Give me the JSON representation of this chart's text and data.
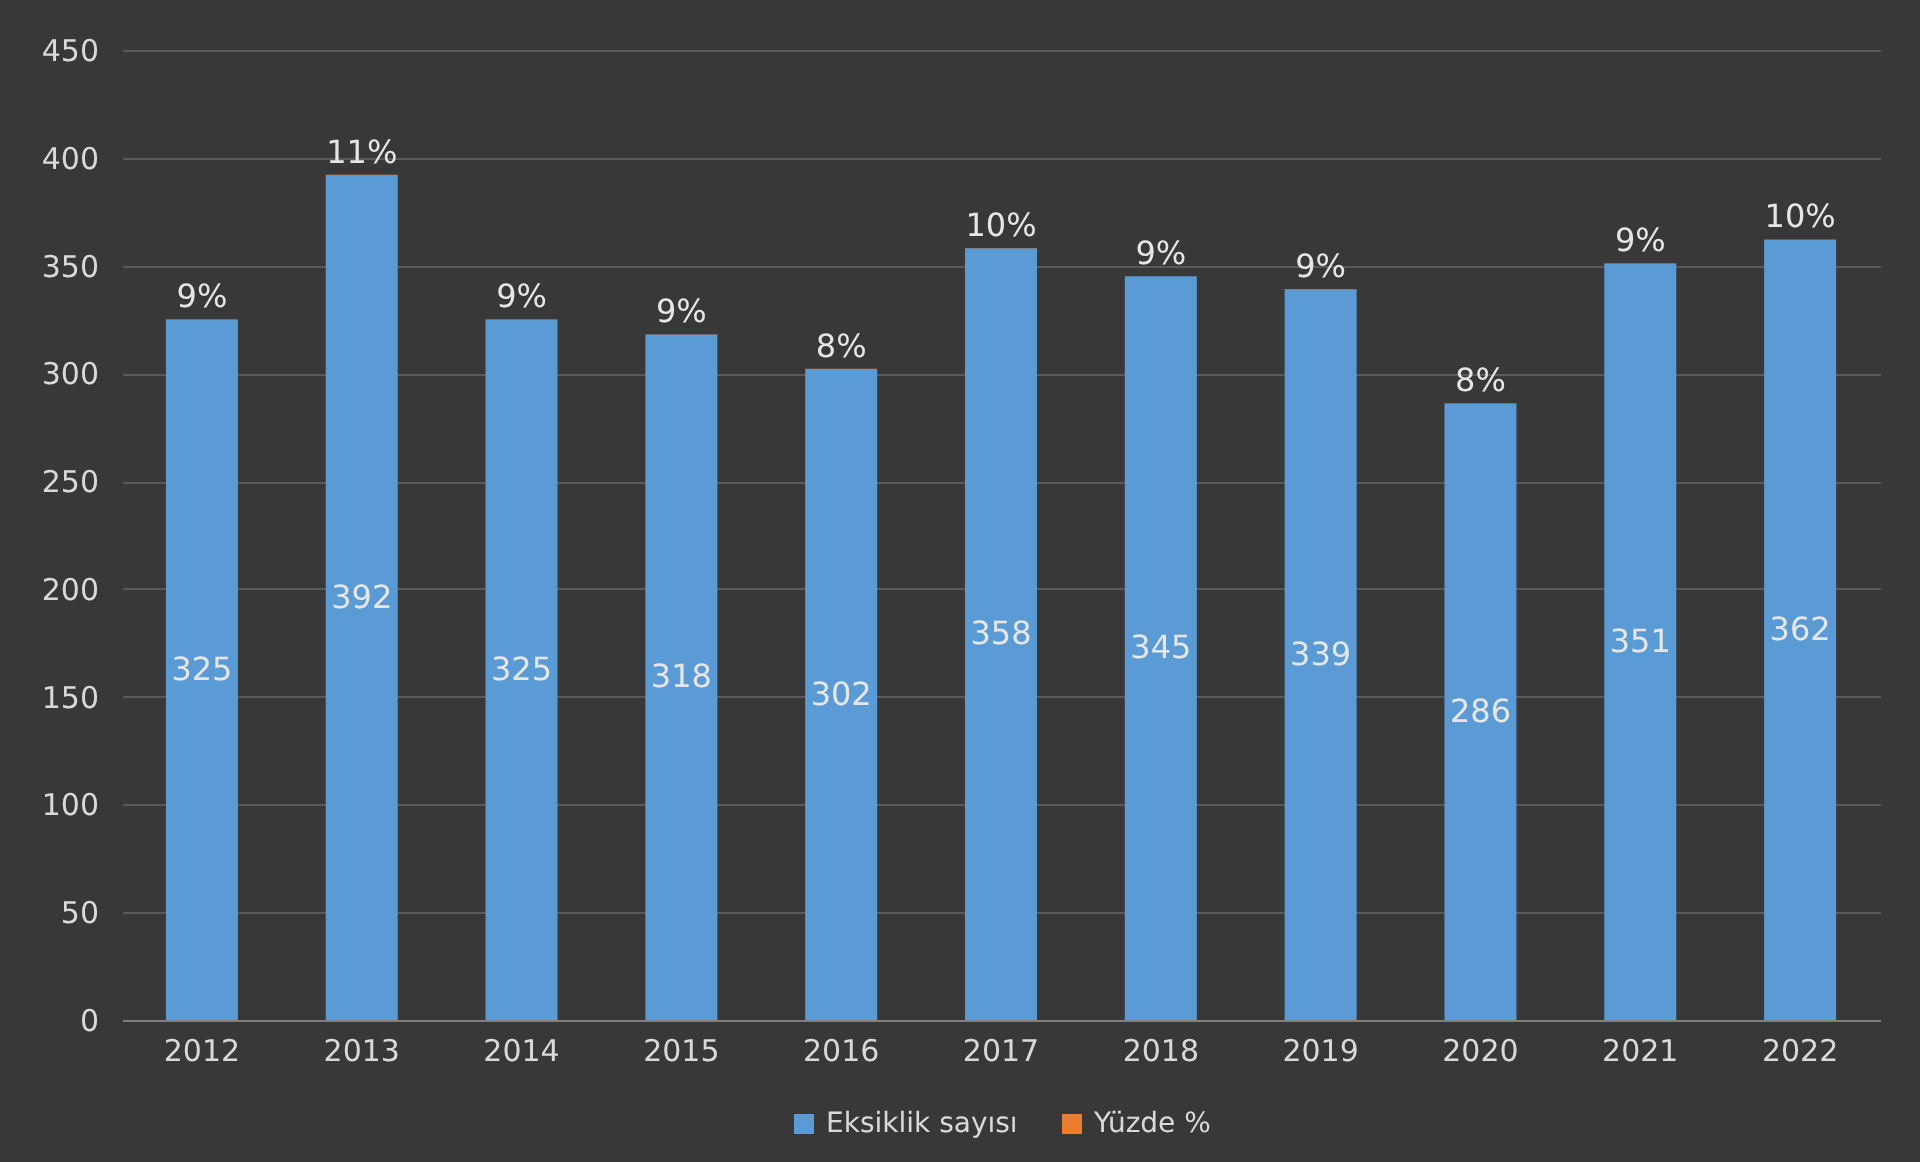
{
  "chart_data": {
    "type": "bar",
    "stacked": true,
    "categories": [
      "2012",
      "2013",
      "2014",
      "2015",
      "2016",
      "2017",
      "2018",
      "2019",
      "2020",
      "2021",
      "2022"
    ],
    "series": [
      {
        "name": "Eksiklik sayısı",
        "color": "#5b9bd5",
        "values": [
          325,
          392,
          325,
          318,
          302,
          358,
          345,
          339,
          286,
          351,
          362
        ],
        "value_labels": [
          "325",
          "392",
          "325",
          "318",
          "302",
          "358",
          "345",
          "339",
          "286",
          "351",
          "362"
        ]
      },
      {
        "name": "Yüzde %",
        "color": "#ed7d31",
        "values": [
          0.09,
          0.11,
          0.09,
          0.09,
          0.08,
          0.1,
          0.09,
          0.09,
          0.08,
          0.09,
          0.1
        ],
        "value_labels": [
          "9%",
          "11%",
          "9%",
          "9%",
          "8%",
          "10%",
          "9%",
          "9%",
          "8%",
          "9%",
          "10%"
        ]
      }
    ],
    "ylim": [
      0,
      450
    ],
    "yticks": [
      0,
      50,
      100,
      150,
      200,
      250,
      300,
      350,
      400,
      450
    ],
    "grid": "y",
    "legend": "bottom"
  }
}
